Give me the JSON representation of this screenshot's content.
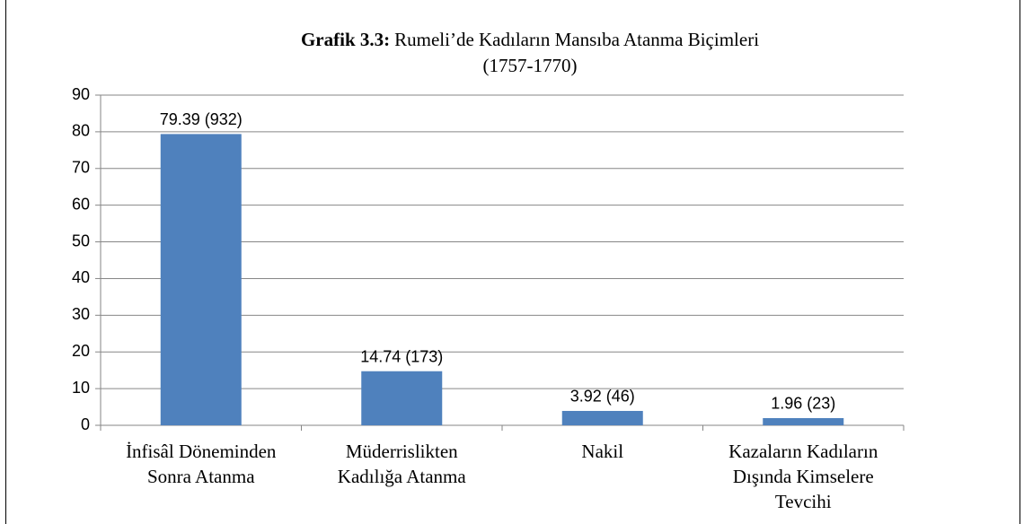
{
  "chart_data": {
    "type": "bar",
    "title_label": "Grafik 3.3:",
    "title": "Rumeli’de Kadıların Mansıba Atanma Biçimleri",
    "subtitle": "(1757-1770)",
    "categories": [
      [
        "İnfisâl Döneminden",
        "Sonra Atanma"
      ],
      [
        "Müderrislikten",
        "Kadılığa Atanma"
      ],
      [
        "Nakil"
      ],
      [
        "Kazaların Kadıların",
        "Dışında Kimselere",
        "Tevcihi"
      ]
    ],
    "values": [
      79.39,
      14.74,
      3.92,
      1.96
    ],
    "value_labels": [
      "79.39 (932)",
      "14.74 (173)",
      "3.92 (46)",
      "1.96 (23)"
    ],
    "color": "#4f81bd",
    "ylim": [
      0,
      90
    ],
    "yticks": [
      0,
      10,
      20,
      30,
      40,
      50,
      60,
      70,
      80,
      90
    ],
    "grid": true
  }
}
